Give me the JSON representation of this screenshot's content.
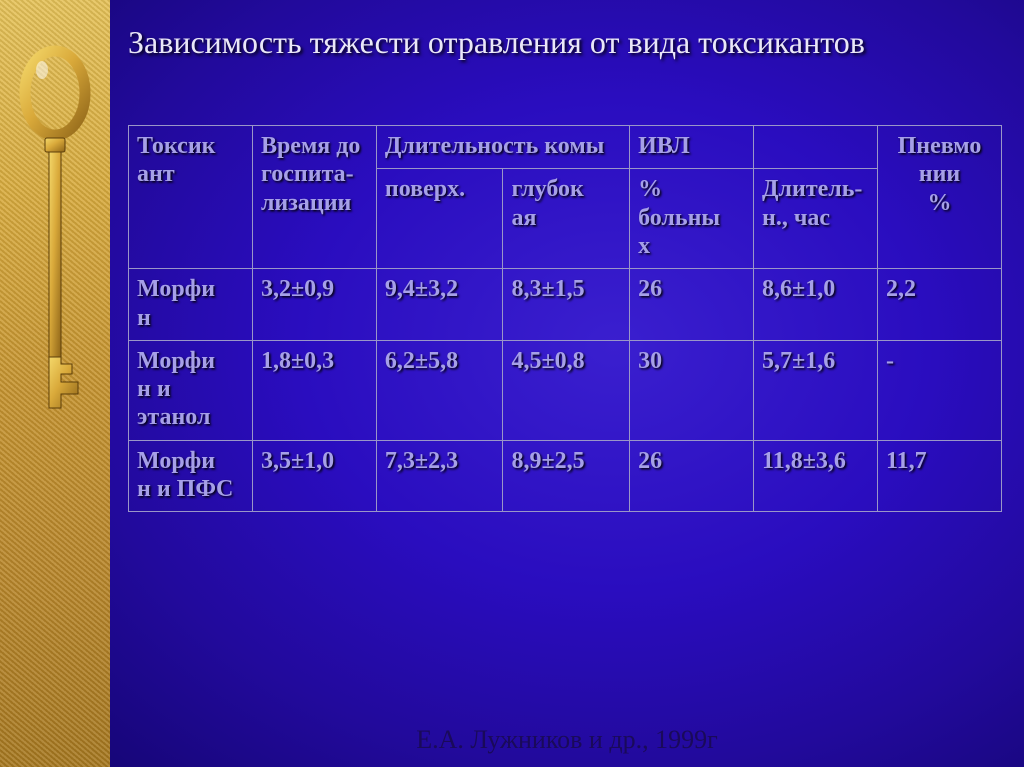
{
  "title": "Зависимость тяжести отравления от вида токсикантов",
  "citation": "Е.А. Лужников и др., 1999г",
  "key_svg": {
    "fill_light": "#f4d86a",
    "fill_dark": "#b8862a",
    "stroke": "#5c3e0a"
  },
  "table": {
    "header_row1": {
      "c0": "Токсик\nант",
      "c1": "Время до госпи­та­лизаци­и",
      "c2": "Длительность комы",
      "c3": "ИВЛ",
      "c4": "",
      "c5": "Пневмо\nнии\n    %"
    },
    "header_row2": {
      "c0": "поверх.",
      "c1": "глубок\nая",
      "c2": "% больны\nх",
      "c3": "Дли­тель­н., час"
    },
    "rows": [
      {
        "c0": "Морфи\nн",
        "c1": "3,2±0,9",
        "c2": "9,4±3,2",
        "c3": "8,3±1,5",
        "c4": "26",
        "c5": "8,6±1,0",
        "c6": "2,2"
      },
      {
        "c0": "Морфи\nн и этанол",
        "c1": "1,8±0,3",
        "c2": "6,2±5,8",
        "c3": "4,5±0,8",
        "c4": "30",
        "c5": "5,7±1,6",
        "c6": "-"
      },
      {
        "c0": "Морфи\nн и ПФС",
        "c1": "3,5±1,0",
        "c2": "7,3±2,3",
        "c3": "8,9±2,5",
        "c4": "26",
        "c5": "11,8±3,6",
        "c6": "11,7"
      }
    ]
  },
  "colors": {
    "text": "#a6a0e8",
    "title": "#eae7f8",
    "border": "#9a96c8",
    "citation": "#1a0a5a"
  }
}
